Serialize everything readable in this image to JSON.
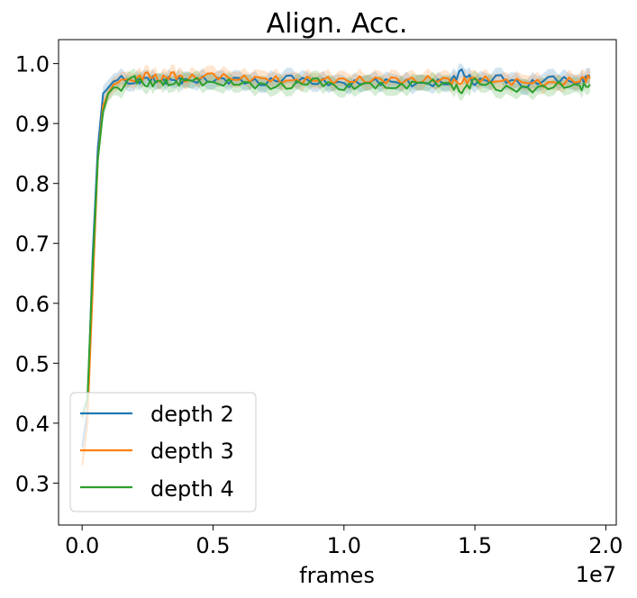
{
  "chart_data": {
    "type": "line",
    "title": "Align. Acc.",
    "xlabel": "frames",
    "ylabel": "",
    "x_offset_label": "1e7",
    "xlim": [
      -0.09,
      2.04
    ],
    "ylim": [
      0.23,
      1.04
    ],
    "xticks": [
      0.0,
      0.5,
      1.0,
      1.5,
      2.0
    ],
    "xtick_labels": [
      "0.0",
      "0.5",
      "1.0",
      "1.5",
      "2.0"
    ],
    "yticks": [
      0.3,
      0.4,
      0.5,
      0.6,
      0.7,
      0.8,
      0.9,
      1.0
    ],
    "ytick_labels": [
      "0.3",
      "0.4",
      "0.5",
      "0.6",
      "0.7",
      "0.8",
      "0.9",
      "1.0"
    ],
    "grid": false,
    "legend_position": "lower-left",
    "shaded_band": "variability around each series",
    "series": [
      {
        "name": "depth 2",
        "color": "#1f77b4",
        "x": [
          0.0,
          0.02,
          0.04,
          0.06,
          0.08,
          0.1,
          0.12,
          0.15,
          0.2,
          0.25,
          0.3,
          0.35,
          0.4,
          0.5,
          0.6,
          0.7,
          0.8,
          0.9,
          1.0,
          1.1,
          1.2,
          1.3,
          1.4,
          1.45,
          1.5,
          1.6,
          1.7,
          1.8,
          1.9,
          1.94
        ],
        "y": [
          0.36,
          0.42,
          0.68,
          0.86,
          0.95,
          0.96,
          0.97,
          0.975,
          0.97,
          0.975,
          0.97,
          0.975,
          0.97,
          0.975,
          0.97,
          0.97,
          0.975,
          0.97,
          0.965,
          0.97,
          0.97,
          0.965,
          0.97,
          0.985,
          0.97,
          0.975,
          0.965,
          0.975,
          0.97,
          0.98
        ]
      },
      {
        "name": "depth 3",
        "color": "#ff7f0e",
        "x": [
          0.0,
          0.02,
          0.04,
          0.06,
          0.08,
          0.1,
          0.12,
          0.15,
          0.2,
          0.25,
          0.3,
          0.35,
          0.4,
          0.5,
          0.6,
          0.7,
          0.8,
          0.9,
          1.0,
          1.1,
          1.2,
          1.3,
          1.4,
          1.45,
          1.5,
          1.6,
          1.7,
          1.8,
          1.9,
          1.94
        ],
        "y": [
          0.33,
          0.4,
          0.62,
          0.84,
          0.93,
          0.95,
          0.965,
          0.97,
          0.975,
          0.98,
          0.975,
          0.98,
          0.975,
          0.98,
          0.975,
          0.975,
          0.97,
          0.975,
          0.97,
          0.975,
          0.97,
          0.975,
          0.97,
          0.97,
          0.975,
          0.97,
          0.97,
          0.965,
          0.975,
          0.975
        ]
      },
      {
        "name": "depth 4",
        "color": "#2ca02c",
        "x": [
          0.0,
          0.02,
          0.04,
          0.06,
          0.08,
          0.1,
          0.12,
          0.15,
          0.2,
          0.25,
          0.3,
          0.35,
          0.4,
          0.5,
          0.6,
          0.7,
          0.8,
          0.9,
          1.0,
          1.1,
          1.2,
          1.3,
          1.4,
          1.45,
          1.5,
          1.6,
          1.7,
          1.8,
          1.9,
          1.94
        ],
        "y": [
          0.41,
          0.44,
          0.66,
          0.84,
          0.92,
          0.95,
          0.96,
          0.96,
          0.975,
          0.965,
          0.97,
          0.965,
          0.975,
          0.965,
          0.97,
          0.96,
          0.965,
          0.97,
          0.96,
          0.965,
          0.96,
          0.97,
          0.965,
          0.955,
          0.97,
          0.96,
          0.955,
          0.965,
          0.96,
          0.965
        ]
      }
    ]
  }
}
